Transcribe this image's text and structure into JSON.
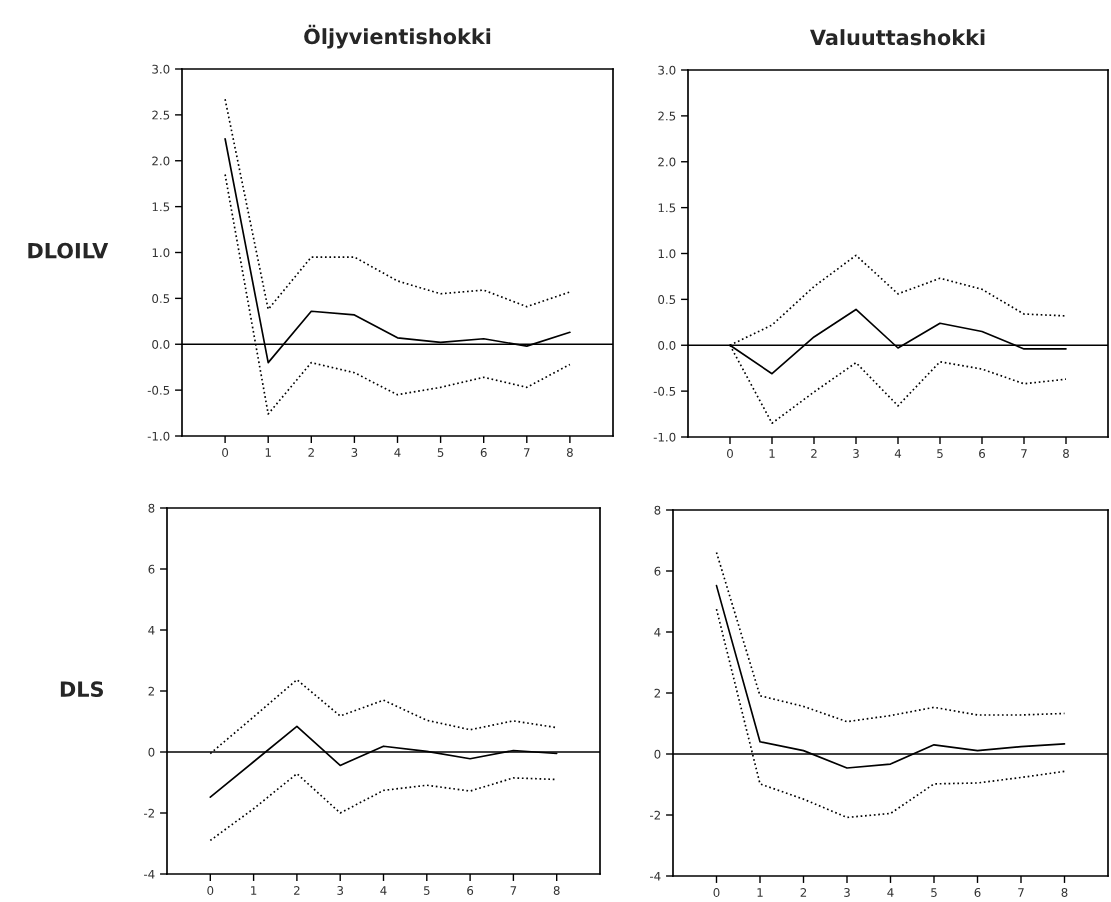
{
  "chart_data": [
    {
      "type": "line",
      "title": "Öljyvientishokki",
      "ylabel": "DLOILV",
      "x": [
        0,
        1,
        2,
        3,
        4,
        5,
        6,
        7,
        8
      ],
      "xlim": [
        -1,
        9
      ],
      "xticks": [
        0,
        1,
        2,
        3,
        4,
        5,
        6,
        7,
        8
      ],
      "ylim": [
        -1,
        3
      ],
      "yticks": [
        {
          "value": -1,
          "label": "-1.0"
        },
        -0.5,
        {
          "value": 0,
          "label": "0.0"
        },
        0.5,
        {
          "value": 1,
          "label": "1.0"
        },
        1.5,
        {
          "value": 2,
          "label": "2.0"
        },
        2.5,
        {
          "value": 3,
          "label": "3.0"
        }
      ],
      "grid": false,
      "legend": false,
      "ref_lines": [
        {
          "axis": "y",
          "value": 0,
          "color": "#000000",
          "line_style": "solid"
        }
      ],
      "series": [
        {
          "color": "#000000",
          "line_style": "solid",
          "values": [
            2.24,
            -0.2,
            0.36,
            0.32,
            0.07,
            0.02,
            0.06,
            -0.02,
            0.13
          ]
        },
        {
          "color": "#000000",
          "line_style": "dotted",
          "values": [
            2.67,
            0.38,
            0.95,
            0.95,
            0.69,
            0.55,
            0.59,
            0.41,
            0.57
          ]
        },
        {
          "color": "#000000",
          "line_style": "dotted",
          "values": [
            1.85,
            -0.76,
            -0.2,
            -0.31,
            -0.55,
            -0.47,
            -0.36,
            -0.47,
            -0.22
          ]
        }
      ]
    },
    {
      "type": "line",
      "title": "Valuuttashokki",
      "x": [
        0,
        1,
        2,
        3,
        4,
        5,
        6,
        7,
        8
      ],
      "xlim": [
        -1,
        9
      ],
      "xticks": [
        0,
        1,
        2,
        3,
        4,
        5,
        6,
        7,
        8
      ],
      "ylim": [
        -1,
        3
      ],
      "yticks": [
        {
          "value": -1,
          "label": "-1.0"
        },
        -0.5,
        {
          "value": 0,
          "label": "0.0"
        },
        0.5,
        {
          "value": 1,
          "label": "1.0"
        },
        1.5,
        {
          "value": 2,
          "label": "2.0"
        },
        2.5,
        {
          "value": 3,
          "label": "3.0"
        }
      ],
      "grid": false,
      "legend": false,
      "ref_lines": [
        {
          "axis": "y",
          "value": 0,
          "color": "#000000",
          "line_style": "solid"
        }
      ],
      "series": [
        {
          "color": "#000000",
          "line_style": "solid",
          "values": [
            0.0,
            -0.31,
            0.09,
            0.39,
            -0.03,
            0.24,
            0.15,
            -0.04,
            -0.04
          ]
        },
        {
          "color": "#000000",
          "line_style": "dotted",
          "values": [
            0.0,
            0.22,
            0.64,
            0.98,
            0.56,
            0.73,
            0.61,
            0.34,
            0.32
          ]
        },
        {
          "color": "#000000",
          "line_style": "dotted",
          "values": [
            0.0,
            -0.85,
            -0.51,
            -0.19,
            -0.66,
            -0.18,
            -0.26,
            -0.42,
            -0.37
          ]
        }
      ]
    },
    {
      "type": "line",
      "ylabel": "DLS",
      "x": [
        0,
        1,
        2,
        3,
        4,
        5,
        6,
        7,
        8
      ],
      "xlim": [
        -1,
        9
      ],
      "xticks": [
        0,
        1,
        2,
        3,
        4,
        5,
        6,
        7,
        8
      ],
      "ylim": [
        -4,
        8
      ],
      "yticks": [
        -4,
        -2,
        0,
        2,
        4,
        6,
        8
      ],
      "grid": false,
      "legend": false,
      "ref_lines": [
        {
          "axis": "y",
          "value": 0,
          "color": "#000000",
          "line_style": "solid"
        }
      ],
      "series": [
        {
          "color": "#000000",
          "line_style": "solid",
          "values": [
            -1.48,
            -0.32,
            0.84,
            -0.44,
            0.19,
            0.02,
            -0.22,
            0.05,
            -0.05
          ]
        },
        {
          "color": "#000000",
          "line_style": "dotted",
          "values": [
            -0.05,
            1.15,
            2.37,
            1.18,
            1.7,
            1.04,
            0.73,
            1.02,
            0.8
          ]
        },
        {
          "color": "#000000",
          "line_style": "dotted",
          "values": [
            -2.9,
            -1.86,
            -0.71,
            -2.0,
            -1.26,
            -1.09,
            -1.28,
            -0.85,
            -0.9
          ]
        }
      ]
    },
    {
      "type": "line",
      "x": [
        0,
        1,
        2,
        3,
        4,
        5,
        6,
        7,
        8
      ],
      "xlim": [
        -1,
        9
      ],
      "xticks": [
        0,
        1,
        2,
        3,
        4,
        5,
        6,
        7,
        8
      ],
      "ylim": [
        -4,
        8
      ],
      "yticks": [
        -4,
        -2,
        0,
        2,
        4,
        6,
        8
      ],
      "grid": false,
      "legend": false,
      "ref_lines": [
        {
          "axis": "y",
          "value": 0,
          "color": "#000000",
          "line_style": "solid"
        }
      ],
      "series": [
        {
          "color": "#000000",
          "line_style": "solid",
          "values": [
            5.52,
            0.4,
            0.11,
            -0.46,
            -0.33,
            0.3,
            0.11,
            0.24,
            0.33
          ]
        },
        {
          "color": "#000000",
          "line_style": "dotted",
          "values": [
            6.61,
            1.91,
            1.56,
            1.06,
            1.26,
            1.53,
            1.28,
            1.28,
            1.33
          ]
        },
        {
          "color": "#000000",
          "line_style": "dotted",
          "values": [
            4.75,
            -0.98,
            -1.48,
            -2.08,
            -1.95,
            -0.98,
            -0.95,
            -0.77,
            -0.57
          ]
        }
      ]
    }
  ]
}
